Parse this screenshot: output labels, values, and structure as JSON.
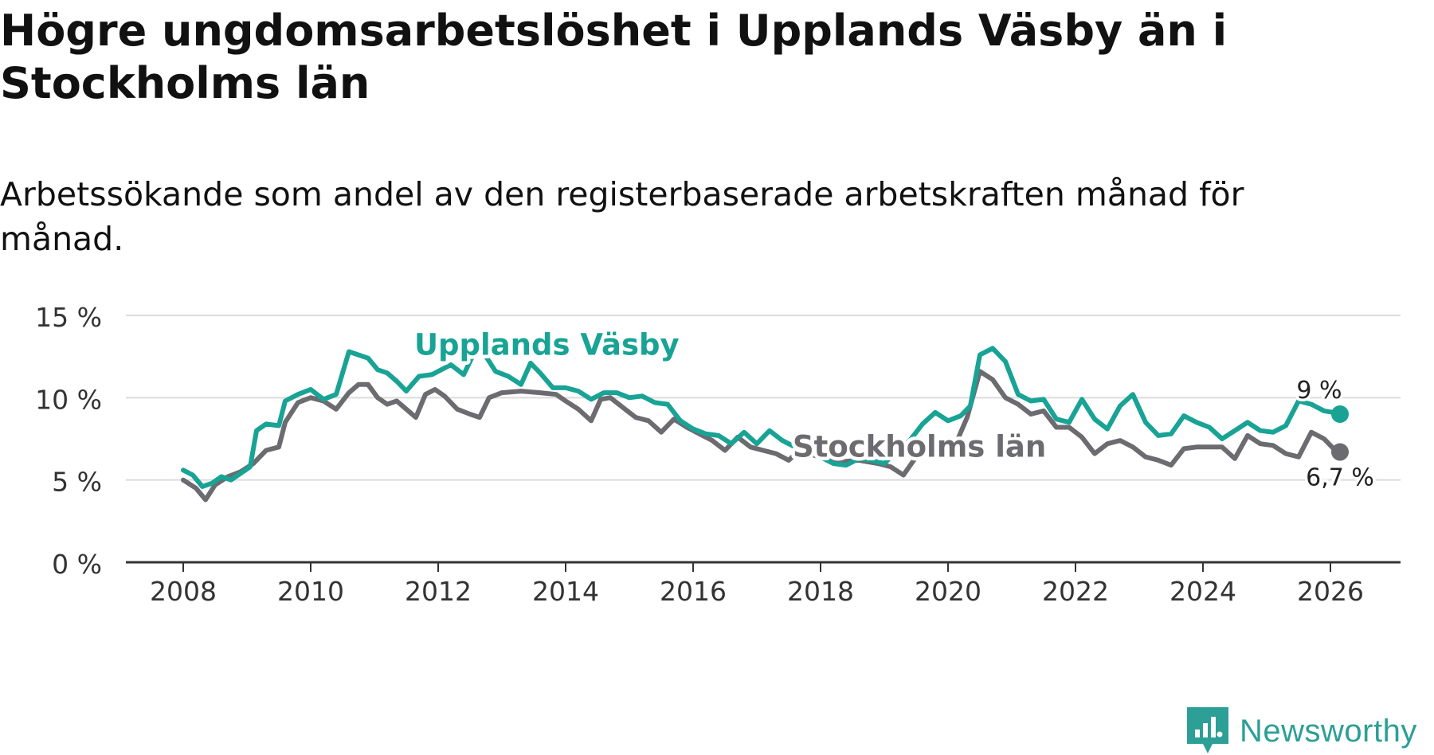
{
  "title": "Högre ungdomsarbetslöshet i Upplands Väsby än i Stockholms län",
  "subtitle": "Arbetssökande som andel av den registerbaserade arbetskraften månad för månad.",
  "brand": {
    "name": "Newsworthy",
    "icon": "newsworthy-logo-icon",
    "color": "#2c9f96"
  },
  "chart_data": {
    "type": "line",
    "ylim": [
      0,
      15
    ],
    "xlim": [
      2007.1,
      2027.1
    ],
    "yticks": [
      0,
      5,
      10,
      15
    ],
    "ytick_labels": [
      "0 %",
      "5 %",
      "10 %",
      "15 %"
    ],
    "xticks": [
      2008,
      2010,
      2012,
      2014,
      2016,
      2018,
      2020,
      2022,
      2024,
      2026
    ],
    "xtick_labels": [
      "2008",
      "2010",
      "2012",
      "2014",
      "2016",
      "2018",
      "2020",
      "2022",
      "2024",
      "2026"
    ],
    "grid": true,
    "series": [
      {
        "name": "Stockholms län",
        "color": "#6b6b70",
        "end_label": "6,7 %",
        "label_at_x": 2019.5,
        "points": [
          [
            2008.0,
            5.0
          ],
          [
            2008.2,
            4.5
          ],
          [
            2008.35,
            3.8
          ],
          [
            2008.5,
            4.7
          ],
          [
            2008.7,
            5.2
          ],
          [
            2008.9,
            5.5
          ],
          [
            2009.1,
            6.0
          ],
          [
            2009.3,
            6.8
          ],
          [
            2009.5,
            7.0
          ],
          [
            2009.6,
            8.5
          ],
          [
            2009.8,
            9.7
          ],
          [
            2010.0,
            10.0
          ],
          [
            2010.2,
            9.8
          ],
          [
            2010.4,
            9.3
          ],
          [
            2010.6,
            10.3
          ],
          [
            2010.75,
            10.8
          ],
          [
            2010.9,
            10.8
          ],
          [
            2011.05,
            10.0
          ],
          [
            2011.2,
            9.6
          ],
          [
            2011.35,
            9.8
          ],
          [
            2011.5,
            9.3
          ],
          [
            2011.65,
            8.8
          ],
          [
            2011.8,
            10.2
          ],
          [
            2011.95,
            10.5
          ],
          [
            2012.1,
            10.1
          ],
          [
            2012.3,
            9.3
          ],
          [
            2012.5,
            9.0
          ],
          [
            2012.65,
            8.8
          ],
          [
            2012.8,
            10.0
          ],
          [
            2013.0,
            10.3
          ],
          [
            2013.3,
            10.4
          ],
          [
            2013.6,
            10.3
          ],
          [
            2013.85,
            10.2
          ],
          [
            2014.0,
            9.8
          ],
          [
            2014.2,
            9.3
          ],
          [
            2014.4,
            8.6
          ],
          [
            2014.55,
            9.9
          ],
          [
            2014.7,
            10.0
          ],
          [
            2014.9,
            9.4
          ],
          [
            2015.1,
            8.8
          ],
          [
            2015.3,
            8.6
          ],
          [
            2015.5,
            7.9
          ],
          [
            2015.7,
            8.7
          ],
          [
            2015.9,
            8.2
          ],
          [
            2016.1,
            7.8
          ],
          [
            2016.3,
            7.4
          ],
          [
            2016.5,
            6.8
          ],
          [
            2016.7,
            7.6
          ],
          [
            2016.9,
            7.0
          ],
          [
            2017.1,
            6.8
          ],
          [
            2017.3,
            6.6
          ],
          [
            2017.5,
            6.2
          ],
          [
            2017.7,
            6.9
          ],
          [
            2017.9,
            6.5
          ],
          [
            2018.1,
            6.3
          ],
          [
            2018.3,
            6.1
          ],
          [
            2018.6,
            6.2
          ],
          [
            2018.9,
            6.0
          ],
          [
            2019.1,
            5.8
          ],
          [
            2019.3,
            5.3
          ],
          [
            2019.5,
            6.4
          ],
          [
            2019.7,
            7.1
          ],
          [
            2019.9,
            7.3
          ],
          [
            2020.1,
            7.0
          ],
          [
            2020.3,
            8.8
          ],
          [
            2020.5,
            11.6
          ],
          [
            2020.7,
            11.1
          ],
          [
            2020.9,
            10.0
          ],
          [
            2021.1,
            9.6
          ],
          [
            2021.3,
            9.0
          ],
          [
            2021.5,
            9.2
          ],
          [
            2021.7,
            8.2
          ],
          [
            2021.9,
            8.2
          ],
          [
            2022.1,
            7.6
          ],
          [
            2022.3,
            6.6
          ],
          [
            2022.5,
            7.2
          ],
          [
            2022.7,
            7.4
          ],
          [
            2022.9,
            7.0
          ],
          [
            2023.1,
            6.4
          ],
          [
            2023.3,
            6.2
          ],
          [
            2023.5,
            5.9
          ],
          [
            2023.7,
            6.9
          ],
          [
            2023.9,
            7.0
          ],
          [
            2024.1,
            7.0
          ],
          [
            2024.3,
            7.0
          ],
          [
            2024.5,
            6.3
          ],
          [
            2024.7,
            7.7
          ],
          [
            2024.9,
            7.2
          ],
          [
            2025.1,
            7.1
          ],
          [
            2025.3,
            6.6
          ],
          [
            2025.5,
            6.4
          ],
          [
            2025.7,
            7.9
          ],
          [
            2025.9,
            7.5
          ],
          [
            2026.05,
            6.9
          ],
          [
            2026.15,
            6.7
          ]
        ]
      },
      {
        "name": "Upplands Väsby",
        "color": "#18a395",
        "end_label": "9 %",
        "label_at_x": 2012.5,
        "points": [
          [
            2008.0,
            5.6
          ],
          [
            2008.15,
            5.3
          ],
          [
            2008.3,
            4.6
          ],
          [
            2008.45,
            4.8
          ],
          [
            2008.6,
            5.2
          ],
          [
            2008.75,
            5.0
          ],
          [
            2008.9,
            5.4
          ],
          [
            2009.05,
            5.8
          ],
          [
            2009.15,
            8.0
          ],
          [
            2009.3,
            8.4
          ],
          [
            2009.5,
            8.3
          ],
          [
            2009.6,
            9.8
          ],
          [
            2009.8,
            10.2
          ],
          [
            2010.0,
            10.5
          ],
          [
            2010.2,
            9.9
          ],
          [
            2010.4,
            10.2
          ],
          [
            2010.6,
            12.8
          ],
          [
            2010.75,
            12.6
          ],
          [
            2010.9,
            12.4
          ],
          [
            2011.05,
            11.7
          ],
          [
            2011.2,
            11.5
          ],
          [
            2011.35,
            11.0
          ],
          [
            2011.5,
            10.4
          ],
          [
            2011.7,
            11.3
          ],
          [
            2011.9,
            11.4
          ],
          [
            2012.0,
            11.6
          ],
          [
            2012.2,
            12.0
          ],
          [
            2012.4,
            11.4
          ],
          [
            2012.55,
            12.6
          ],
          [
            2012.7,
            12.8
          ],
          [
            2012.9,
            11.6
          ],
          [
            2013.1,
            11.3
          ],
          [
            2013.3,
            10.8
          ],
          [
            2013.45,
            12.1
          ],
          [
            2013.6,
            11.5
          ],
          [
            2013.8,
            10.6
          ],
          [
            2014.0,
            10.6
          ],
          [
            2014.2,
            10.4
          ],
          [
            2014.4,
            9.9
          ],
          [
            2014.6,
            10.3
          ],
          [
            2014.8,
            10.3
          ],
          [
            2015.0,
            10.0
          ],
          [
            2015.2,
            10.1
          ],
          [
            2015.4,
            9.7
          ],
          [
            2015.6,
            9.6
          ],
          [
            2015.8,
            8.6
          ],
          [
            2016.0,
            8.1
          ],
          [
            2016.2,
            7.8
          ],
          [
            2016.4,
            7.7
          ],
          [
            2016.6,
            7.2
          ],
          [
            2016.8,
            7.9
          ],
          [
            2017.0,
            7.2
          ],
          [
            2017.2,
            8.0
          ],
          [
            2017.4,
            7.4
          ],
          [
            2017.6,
            7.0
          ],
          [
            2017.8,
            6.8
          ],
          [
            2018.0,
            6.4
          ],
          [
            2018.2,
            6.0
          ],
          [
            2018.4,
            5.9
          ],
          [
            2018.6,
            6.3
          ],
          [
            2018.8,
            6.2
          ],
          [
            2019.0,
            6.0
          ],
          [
            2019.2,
            6.8
          ],
          [
            2019.4,
            7.4
          ],
          [
            2019.6,
            8.4
          ],
          [
            2019.8,
            9.1
          ],
          [
            2020.0,
            8.6
          ],
          [
            2020.2,
            8.9
          ],
          [
            2020.35,
            9.5
          ],
          [
            2020.5,
            12.6
          ],
          [
            2020.7,
            13.0
          ],
          [
            2020.9,
            12.2
          ],
          [
            2021.1,
            10.2
          ],
          [
            2021.3,
            9.8
          ],
          [
            2021.5,
            9.9
          ],
          [
            2021.7,
            8.7
          ],
          [
            2021.9,
            8.5
          ],
          [
            2022.1,
            9.9
          ],
          [
            2022.3,
            8.7
          ],
          [
            2022.5,
            8.1
          ],
          [
            2022.7,
            9.5
          ],
          [
            2022.9,
            10.2
          ],
          [
            2023.1,
            8.5
          ],
          [
            2023.3,
            7.7
          ],
          [
            2023.5,
            7.8
          ],
          [
            2023.7,
            8.9
          ],
          [
            2023.9,
            8.5
          ],
          [
            2024.1,
            8.2
          ],
          [
            2024.3,
            7.5
          ],
          [
            2024.5,
            8.0
          ],
          [
            2024.7,
            8.5
          ],
          [
            2024.9,
            8.0
          ],
          [
            2025.1,
            7.9
          ],
          [
            2025.3,
            8.3
          ],
          [
            2025.5,
            9.8
          ],
          [
            2025.7,
            9.6
          ],
          [
            2025.9,
            9.2
          ],
          [
            2026.05,
            9.1
          ],
          [
            2026.15,
            9.0
          ]
        ]
      }
    ]
  }
}
